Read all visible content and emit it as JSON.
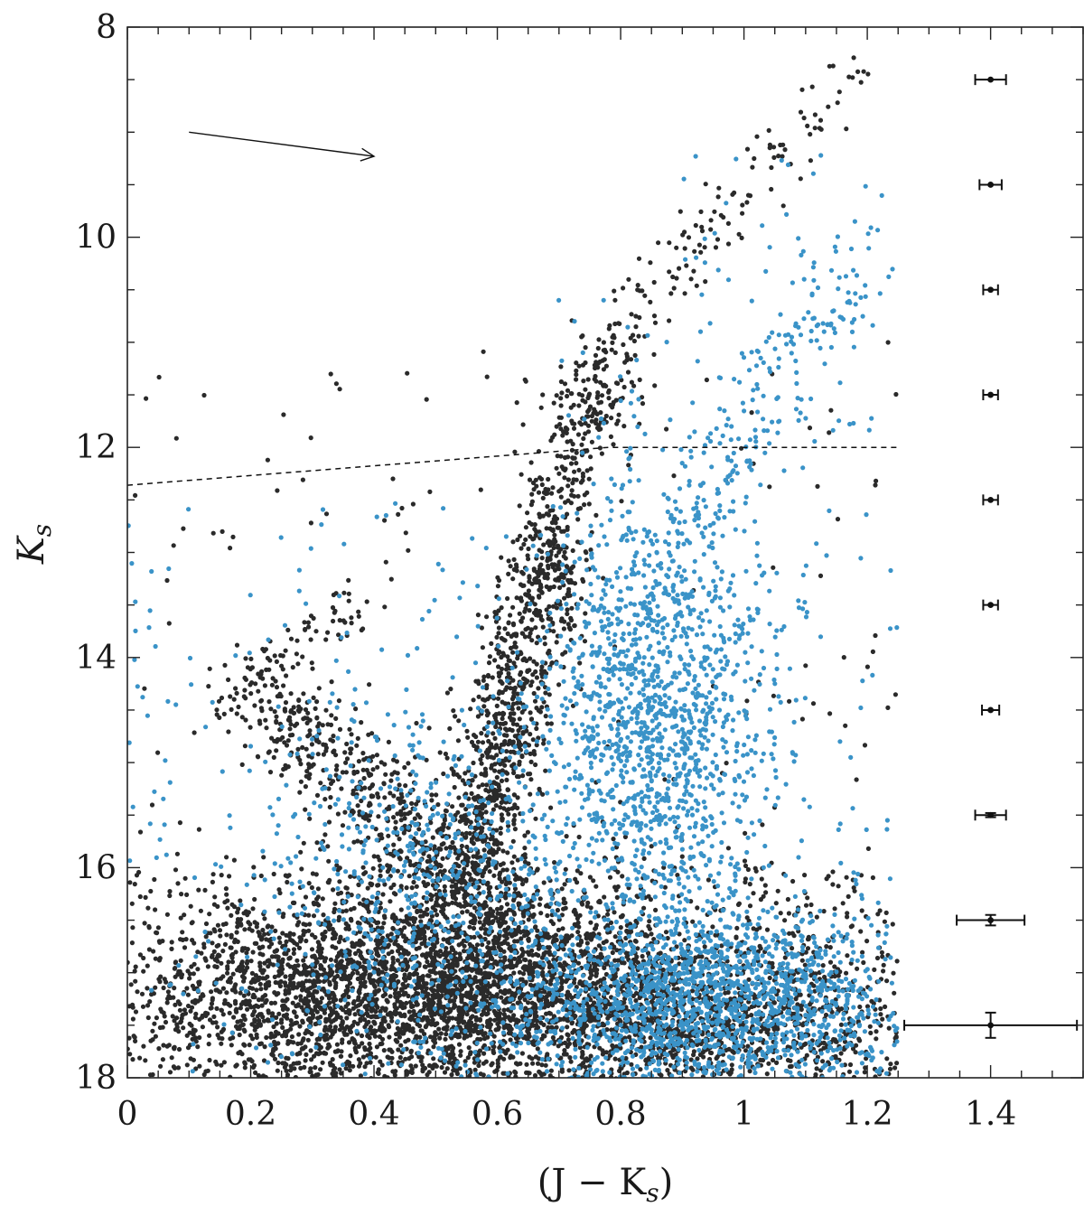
{
  "chart_data": {
    "type": "scatter",
    "title": "",
    "xlabel_text": "(J − K",
    "xlabel_sub": "s",
    "xlabel_close": ")",
    "ylabel_text": "K",
    "ylabel_sub": "s",
    "xlim": [
      0,
      1.55
    ],
    "ylim": [
      18,
      8
    ],
    "y_inverted": true,
    "x_ticks": [
      {
        "value": 0,
        "label": "0"
      },
      {
        "value": 0.2,
        "label": "0.2"
      },
      {
        "value": 0.4,
        "label": "0.4"
      },
      {
        "value": 0.6,
        "label": "0.6"
      },
      {
        "value": 0.8,
        "label": "0.8"
      },
      {
        "value": 1.0,
        "label": "1"
      },
      {
        "value": 1.2,
        "label": "1.2"
      },
      {
        "value": 1.4,
        "label": "1.4"
      }
    ],
    "y_ticks": [
      {
        "value": 8,
        "label": "8"
      },
      {
        "value": 10,
        "label": "10"
      },
      {
        "value": 12,
        "label": "12"
      },
      {
        "value": 14,
        "label": "14"
      },
      {
        "value": 16,
        "label": "16"
      },
      {
        "value": 18,
        "label": "18"
      }
    ],
    "x_minor_step": 0.05,
    "y_minor_step": 0.5,
    "grid": false,
    "legend": "none",
    "series": [
      {
        "color": "#2a2a2a",
        "description_points": "dark population: main-sequence/giant branch sequence",
        "seed": 11,
        "components": [
          {
            "kind": "blob",
            "cx": 0.52,
            "cy": 17.1,
            "sx": 0.16,
            "sy": 0.55,
            "n": 2600
          },
          {
            "kind": "blob",
            "cx": 0.92,
            "cy": 17.4,
            "sx": 0.2,
            "sy": 0.4,
            "n": 1400
          },
          {
            "kind": "blob",
            "cx": 0.22,
            "cy": 17.3,
            "sx": 0.12,
            "sy": 0.45,
            "n": 700
          },
          {
            "kind": "branch",
            "x0": 0.55,
            "y0": 16.3,
            "x1": 0.68,
            "y1": 13.0,
            "spread": 0.035,
            "n": 900
          },
          {
            "kind": "branch",
            "x0": 0.68,
            "y0": 13.0,
            "x1": 0.78,
            "y1": 11.0,
            "spread": 0.035,
            "n": 300
          },
          {
            "kind": "branch",
            "x0": 0.78,
            "y0": 11.0,
            "x1": 1.18,
            "y1": 8.4,
            "spread": 0.035,
            "n": 120
          },
          {
            "kind": "branch",
            "x0": 0.55,
            "y0": 16.0,
            "x1": 0.2,
            "y1": 14.3,
            "spread": 0.05,
            "n": 450
          },
          {
            "kind": "branch",
            "x0": 0.2,
            "y0": 14.3,
            "x1": 0.38,
            "y1": 13.4,
            "spread": 0.03,
            "n": 70
          },
          {
            "kind": "uniform",
            "x": [
              0.0,
              1.25
            ],
            "y": [
              11.0,
              16.0
            ],
            "n": 160
          },
          {
            "kind": "uniform",
            "x": [
              0.0,
              1.25
            ],
            "y": [
              16.0,
              18.0
            ],
            "n": 800
          }
        ]
      },
      {
        "color": "#3a93c8",
        "description_points": "blue population: redder field stars",
        "seed": 29,
        "components": [
          {
            "kind": "blob",
            "cx": 0.86,
            "cy": 14.6,
            "sx": 0.09,
            "sy": 1.2,
            "n": 1500
          },
          {
            "kind": "blob",
            "cx": 0.95,
            "cy": 17.3,
            "sx": 0.17,
            "sy": 0.45,
            "n": 1700
          },
          {
            "kind": "blob",
            "cx": 0.5,
            "cy": 16.2,
            "sx": 0.12,
            "sy": 0.9,
            "n": 600
          },
          {
            "kind": "branch",
            "x0": 0.88,
            "y0": 13.0,
            "x1": 1.18,
            "y1": 10.2,
            "spread": 0.04,
            "n": 180
          },
          {
            "kind": "uniform",
            "x": [
              0.0,
              1.25
            ],
            "y": [
              12.5,
              18.0
            ],
            "n": 300
          },
          {
            "kind": "uniform",
            "x": [
              0.9,
              1.25
            ],
            "y": [
              9.2,
              12.5
            ],
            "n": 70
          }
        ]
      }
    ],
    "error_bars": {
      "x": 1.4,
      "points": [
        {
          "y": 8.5,
          "xerr": 0.025,
          "yerr": 0.01
        },
        {
          "y": 9.5,
          "xerr": 0.018,
          "yerr": 0.01
        },
        {
          "y": 10.5,
          "xerr": 0.012,
          "yerr": 0.01
        },
        {
          "y": 11.5,
          "xerr": 0.012,
          "yerr": 0.01
        },
        {
          "y": 12.5,
          "xerr": 0.012,
          "yerr": 0.01
        },
        {
          "y": 13.5,
          "xerr": 0.012,
          "yerr": 0.01
        },
        {
          "y": 14.5,
          "xerr": 0.014,
          "yerr": 0.01
        },
        {
          "y": 15.5,
          "xerr": 0.025,
          "yerr": 0.02
        },
        {
          "y": 16.5,
          "xerr": 0.055,
          "yerr": 0.05
        },
        {
          "y": 17.5,
          "xerr": 0.14,
          "yerr": 0.12
        }
      ]
    },
    "dashed_line": [
      [
        0.0,
        12.36
      ],
      [
        0.78,
        12.0
      ],
      [
        1.25,
        12.0
      ]
    ],
    "reddening_arrow": {
      "from": [
        0.1,
        9.0
      ],
      "to": [
        0.4,
        9.23
      ]
    },
    "color_cut": 1.25
  }
}
